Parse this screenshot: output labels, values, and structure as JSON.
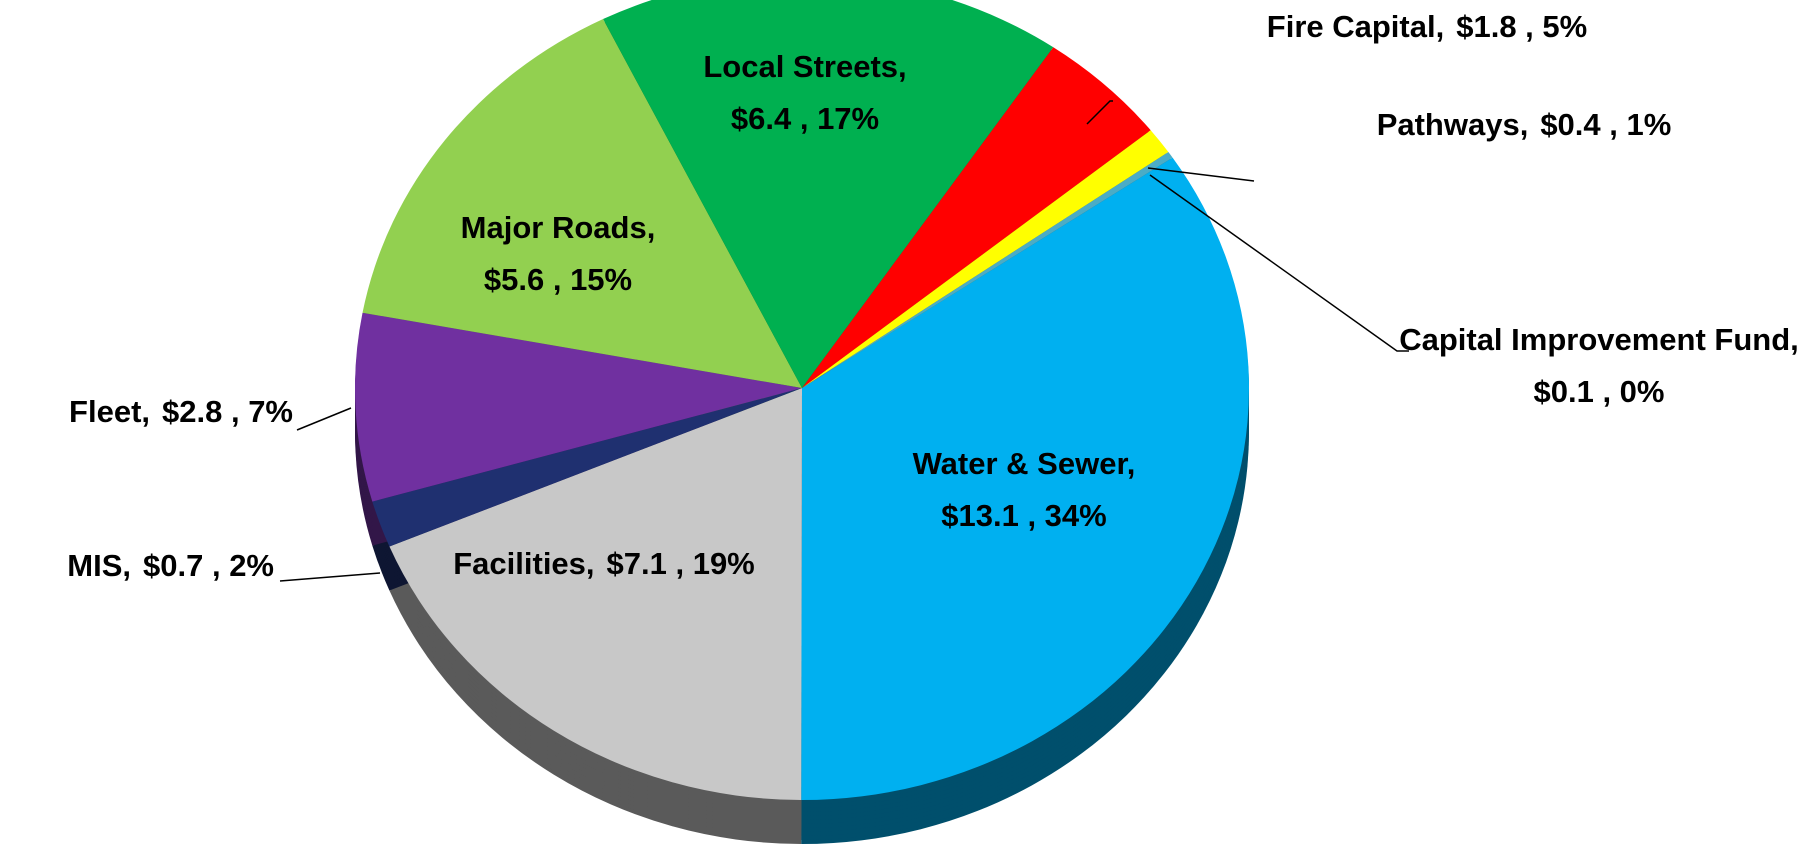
{
  "chart_data": {
    "type": "pie",
    "categories": [
      "Water & Sewer,",
      "Facilities,",
      "MIS,",
      "Fleet,",
      "Major Roads,",
      "Local Streets,",
      "Fire Capital,",
      "Pathways,",
      "Capital Improvement Fund,"
    ],
    "values": [
      13.1,
      7.1,
      0.7,
      2.8,
      5.6,
      6.4,
      1.8,
      0.4,
      0.1
    ],
    "value_labels": [
      "$13.1 , 34%",
      "$7.1 , 19%",
      "$0.7 , 2%",
      "$2.8 , 7%",
      "$5.6 , 15%",
      "$6.4 , 17%",
      "$1.8 , 5%",
      "$0.4 , 1%",
      "$0.1 , 0%"
    ],
    "colors": [
      "#00b0f0",
      "#c8c8c8",
      "#1f3070",
      "#7030a0",
      "#92d050",
      "#00b050",
      "#ff0000",
      "#ffff00",
      "#4bacc6"
    ]
  }
}
